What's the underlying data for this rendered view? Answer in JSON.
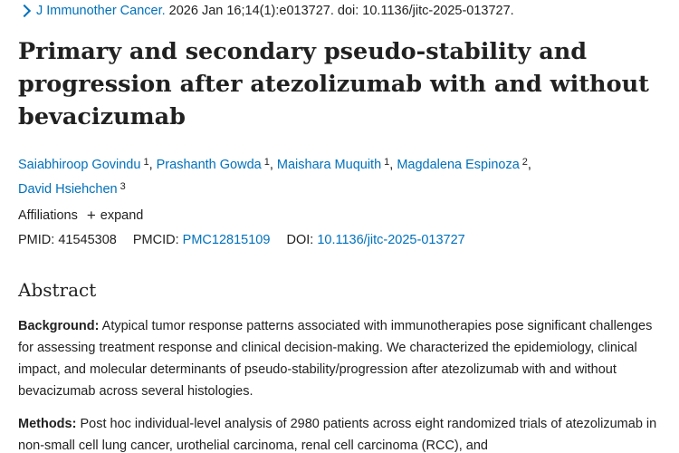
{
  "citation": {
    "journal": "J Immunother Cancer.",
    "details": "2026 Jan 16;14(1):e013727. doi: 10.1136/jitc-2025-013727."
  },
  "title": "Primary and secondary pseudo-stability and progression after atezolizumab with and without bevacizumab",
  "authors": [
    {
      "name": "Saiabhiroop Govindu",
      "aff": "1"
    },
    {
      "name": "Prashanth Gowda",
      "aff": "1"
    },
    {
      "name": "Maishara Muquith",
      "aff": "1"
    },
    {
      "name": "Magdalena Espinoza",
      "aff": "2"
    },
    {
      "name": "David Hsiehchen",
      "aff": "3"
    }
  ],
  "affiliations": {
    "label": "Affiliations",
    "expand_label": "expand"
  },
  "ids": {
    "pmid_label": "PMID:",
    "pmid": "41545308",
    "pmcid_label": "PMCID:",
    "pmcid": "PMC12815109",
    "doi_label": "DOI:",
    "doi": "10.1136/jitc-2025-013727"
  },
  "abstract": {
    "heading": "Abstract",
    "background_label": "Background:",
    "background_text": "Atypical tumor response patterns associated with immunotherapies pose significant challenges for assessing treatment response and clinical decision-making. We characterized the epidemiology, clinical impact, and molecular determinants of pseudo-stability/progression after atezolizumab with and without bevacizumab across several histologies.",
    "methods_label": "Methods:",
    "methods_text": "Post hoc individual-level analysis of 2980 patients across eight randomized trials of atezolizumab in non-small cell lung cancer, urothelial carcinoma, renal cell carcinoma (RCC), and"
  }
}
